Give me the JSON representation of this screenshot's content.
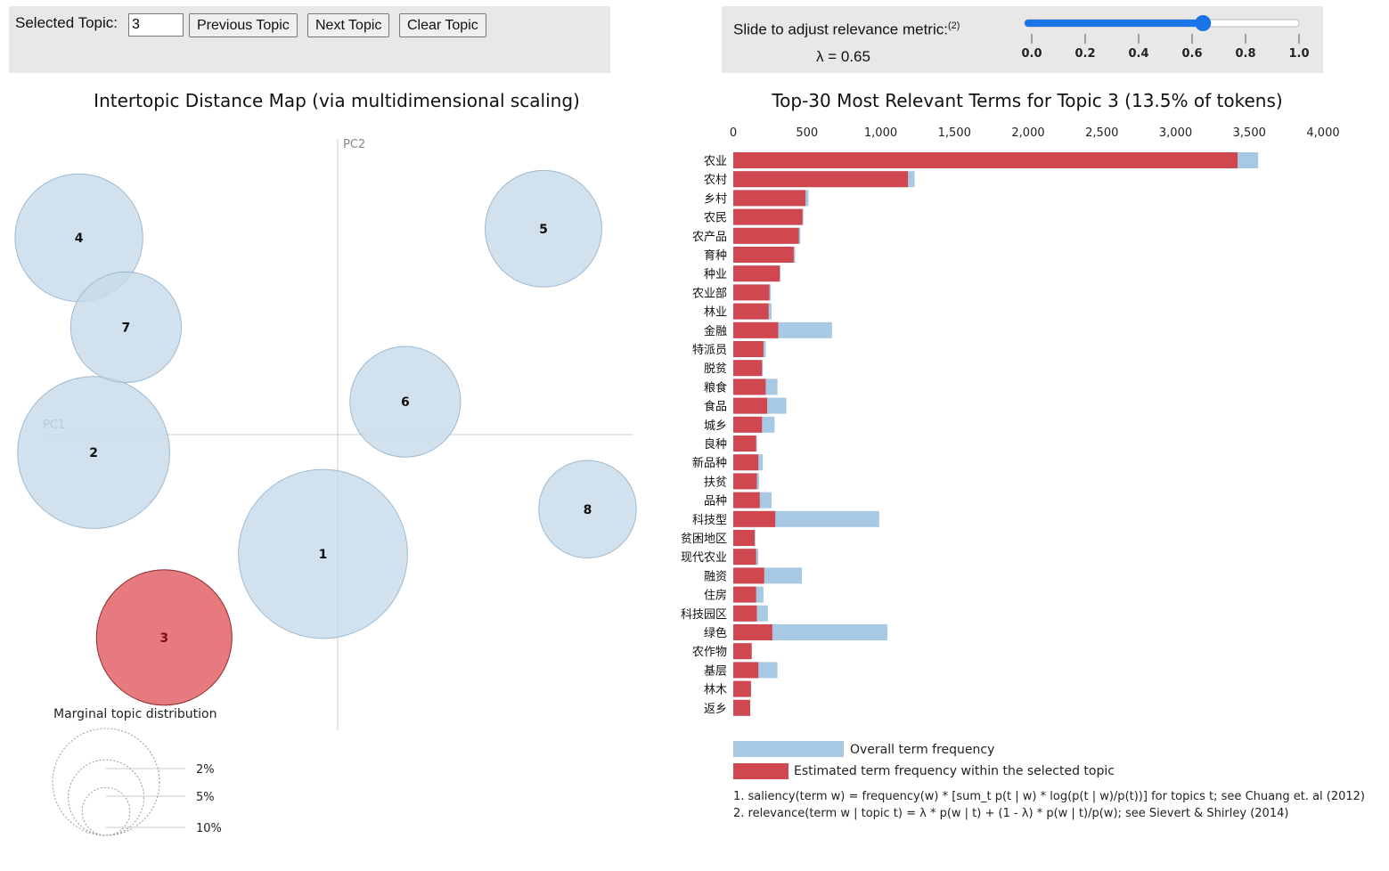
{
  "controls": {
    "selected_topic_label": "Selected Topic:",
    "selected_topic_value": "3",
    "prev_label": "Previous Topic",
    "next_label": "Next Topic",
    "clear_label": "Clear Topic",
    "slider_label": "Slide to adjust relevance metric:",
    "slider_note": "(2)",
    "lambda_text": "λ = 0.65",
    "lambda_value": 0.65,
    "slider_ticks": [
      "0.0",
      "0.2",
      "0.4",
      "0.6",
      "0.8",
      "1.0"
    ]
  },
  "colors": {
    "topic_bubble": "#c6dbea",
    "selected_bubble": "#e0545a",
    "overall_bar": "#a8c9e3",
    "topic_bar": "#d0474f",
    "slider_accent": "#1a73e8"
  },
  "chart_data": [
    {
      "type": "scatter",
      "title": "Intertopic Distance Map (via multidimensional scaling)",
      "xlabel": "PC1",
      "ylabel": "PC2",
      "xlim": [
        -1,
        1
      ],
      "ylim": [
        -1,
        1
      ],
      "topics": [
        {
          "label": "1",
          "x": -0.05,
          "y": -0.4,
          "size": 0.21,
          "selected": false
        },
        {
          "label": "2",
          "x": -0.83,
          "y": -0.06,
          "size": 0.17,
          "selected": false
        },
        {
          "label": "3",
          "x": -0.59,
          "y": -0.68,
          "size": 0.135,
          "selected": true
        },
        {
          "label": "4",
          "x": -0.88,
          "y": 0.66,
          "size": 0.12,
          "selected": false
        },
        {
          "label": "5",
          "x": 0.7,
          "y": 0.69,
          "size": 0.1,
          "selected": false
        },
        {
          "label": "6",
          "x": 0.23,
          "y": 0.11,
          "size": 0.09,
          "selected": false
        },
        {
          "label": "7",
          "x": -0.72,
          "y": 0.36,
          "size": 0.09,
          "selected": false
        },
        {
          "label": "8",
          "x": 0.85,
          "y": -0.25,
          "size": 0.07,
          "selected": false
        }
      ],
      "legend": {
        "title": "Marginal topic distribution",
        "entries": [
          "2%",
          "5%",
          "10%"
        ],
        "values": [
          0.02,
          0.05,
          0.1
        ]
      }
    },
    {
      "type": "bar",
      "orientation": "horizontal",
      "title": "Top-30 Most Relevant Terms for Topic 3 (13.5% of tokens)",
      "xlim": [
        0,
        4000
      ],
      "xticks": [
        "0",
        "500",
        "1,000",
        "1,500",
        "2,000",
        "2,500",
        "3,000",
        "3,500",
        "4,000"
      ],
      "categories": [
        "农业",
        "农村",
        "乡村",
        "农民",
        "农产品",
        "育种",
        "种业",
        "农业部",
        "林业",
        "金融",
        "特派员",
        "脱贫",
        "粮食",
        "食品",
        "城乡",
        "良种",
        "新品种",
        "扶贫",
        "品种",
        "科技型",
        "贫困地区",
        "现代农业",
        "融资",
        "住房",
        "科技园区",
        "绿色",
        "农作物",
        "基层",
        "林木",
        "返乡"
      ],
      "series": [
        {
          "name": "Overall term frequency",
          "values": [
            3560,
            1230,
            510,
            475,
            455,
            420,
            320,
            255,
            260,
            670,
            220,
            200,
            300,
            360,
            280,
            160,
            200,
            175,
            260,
            990,
            150,
            170,
            465,
            205,
            235,
            1045,
            125,
            300,
            120,
            115
          ]
        },
        {
          "name": "Estimated term frequency within the selected topic",
          "values": [
            3420,
            1185,
            490,
            470,
            445,
            410,
            315,
            245,
            240,
            305,
            205,
            195,
            220,
            230,
            195,
            155,
            170,
            160,
            180,
            285,
            145,
            155,
            210,
            155,
            160,
            265,
            125,
            170,
            120,
            115
          ]
        }
      ],
      "footnotes": [
        "1. saliency(term w) = frequency(w) * [sum_t p(t | w) * log(p(t | w)/p(t))] for topics t; see Chuang et. al (2012)",
        "2. relevance(term w | topic t) = λ * p(w | t) + (1 - λ) * p(w | t)/p(w); see Sievert & Shirley (2014)"
      ]
    }
  ]
}
